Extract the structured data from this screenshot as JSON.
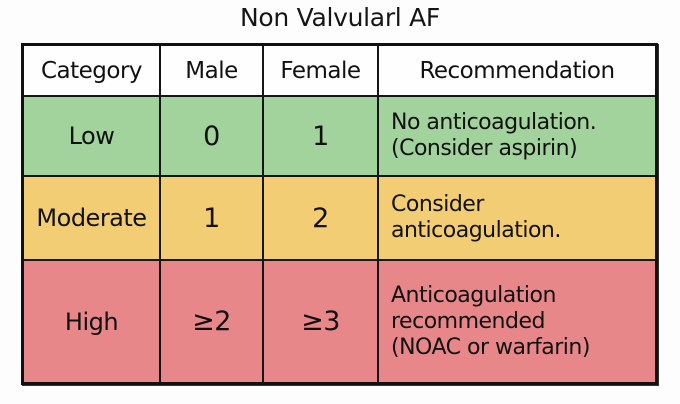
{
  "title": "Non Valvularl AF",
  "colors": {
    "header_bg": "#fefefe",
    "low": "#a3d39c",
    "moderate": "#f3cd73",
    "high": "#e8878a",
    "border": "#151515"
  },
  "table": {
    "headers": [
      "Category",
      "Male",
      "Female",
      "Recommendation"
    ],
    "rows": [
      {
        "category": "Low",
        "male": "0",
        "female": "1",
        "recommendation": [
          "No anticoagulation.",
          "(Consider aspirin)"
        ]
      },
      {
        "category": "Moderate",
        "male": "1",
        "female": "2",
        "recommendation": [
          "Consider",
          "anticoagulation."
        ]
      },
      {
        "category": "High",
        "male": "≥2",
        "female": "≥3",
        "recommendation": [
          "Anticoagulation",
          "recommended",
          "(NOAC or warfarin)"
        ]
      }
    ]
  }
}
